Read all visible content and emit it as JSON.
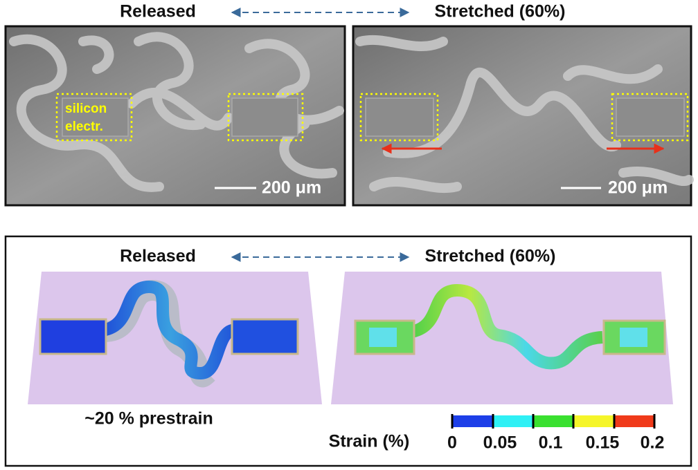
{
  "top": {
    "released_label": "Released",
    "stretched_label": "Stretched (60%)",
    "left_image": {
      "region_label": [
        "silicon",
        "electr."
      ],
      "scale_bar": "200 μm"
    },
    "right_image": {
      "scale_bar": "200 μm"
    }
  },
  "bottom": {
    "released_label": "Released",
    "stretched_label": "Stretched (60%)",
    "prestrain_note": "~20 % prestrain",
    "colorbar": {
      "title": "Strain (%)",
      "tick_labels": [
        "0",
        "0.05",
        "0.1",
        "0.15",
        "0.2"
      ]
    }
  }
}
